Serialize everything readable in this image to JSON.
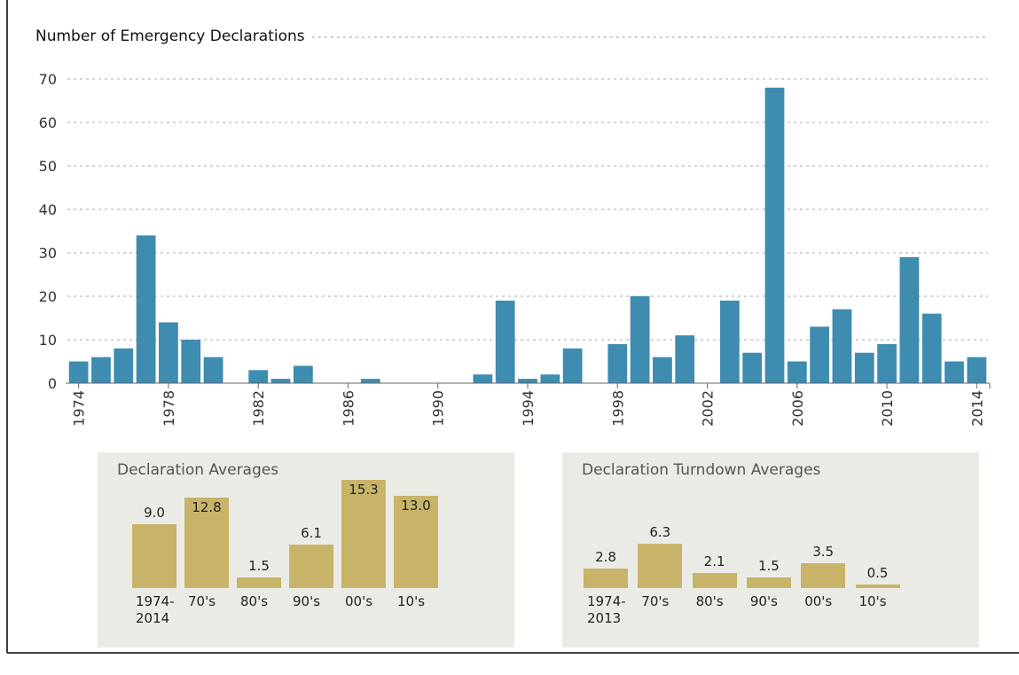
{
  "chart_data": [
    {
      "type": "bar",
      "title": "Number of Emergency Declarations",
      "categories": [
        "1974",
        null,
        null,
        null,
        "1978",
        null,
        null,
        null,
        "1982",
        null,
        null,
        null,
        "1986",
        null,
        null,
        null,
        "1990",
        null,
        null,
        null,
        "1994",
        null,
        null,
        null,
        "1998",
        null,
        null,
        null,
        "2002",
        null,
        null,
        null,
        "2006",
        null,
        null,
        null,
        "2010",
        null,
        null,
        null,
        "2014"
      ],
      "values": [
        5,
        6,
        8,
        34,
        14,
        10,
        6,
        0,
        3,
        1,
        4,
        0,
        0,
        1,
        0,
        0,
        0,
        0,
        2,
        19,
        1,
        2,
        8,
        0,
        9,
        20,
        6,
        11,
        0,
        19,
        7,
        68,
        5,
        13,
        17,
        7,
        9,
        29,
        16,
        5,
        6
      ],
      "color": "#3e8cb0",
      "ylim": [
        0,
        70
      ],
      "yticks": [
        0,
        10,
        20,
        30,
        40,
        50,
        60,
        70
      ],
      "grid": true
    },
    {
      "type": "bar",
      "title": "Declaration Averages",
      "categories": [
        "1974-2014",
        "70's",
        "80's",
        "90's",
        "00's",
        "10's"
      ],
      "values": [
        9.0,
        12.8,
        1.5,
        6.1,
        15.3,
        13.0
      ],
      "value_labels": [
        "9.0",
        "12.8",
        "1.5",
        "6.1",
        "15.3",
        "13.0"
      ],
      "color": "#c8b468"
    },
    {
      "type": "bar",
      "title": "Declaration Turndown Averages",
      "categories": [
        "1974-2013",
        "70's",
        "80's",
        "90's",
        "00's",
        "10's"
      ],
      "values": [
        2.8,
        6.3,
        2.1,
        1.5,
        3.5,
        0.5
      ],
      "value_labels": [
        "2.8",
        "6.3",
        "2.1",
        "1.5",
        "3.5",
        "0.5"
      ],
      "color": "#c8b468"
    }
  ]
}
